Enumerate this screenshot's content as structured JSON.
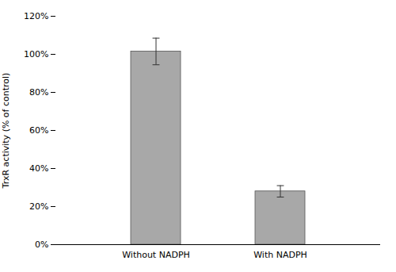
{
  "chart_data": {
    "type": "bar",
    "categories": [
      "Without NADPH",
      "With NADPH"
    ],
    "values": [
      101.5,
      28.0
    ],
    "errors": [
      7.0,
      3.0
    ],
    "color": "#a8a8a8",
    "ylabel": "TrxR activity (% of control)",
    "ylim": [
      0,
      120
    ],
    "yticks": [
      {
        "value": 0,
        "label": "0%"
      },
      {
        "value": 20,
        "label": "20%"
      },
      {
        "value": 40,
        "label": "40%"
      },
      {
        "value": 60,
        "label": "60%"
      },
      {
        "value": 80,
        "label": "80%"
      },
      {
        "value": 100,
        "label": "100%"
      },
      {
        "value": 120,
        "label": "120%"
      }
    ],
    "grid": false
  }
}
